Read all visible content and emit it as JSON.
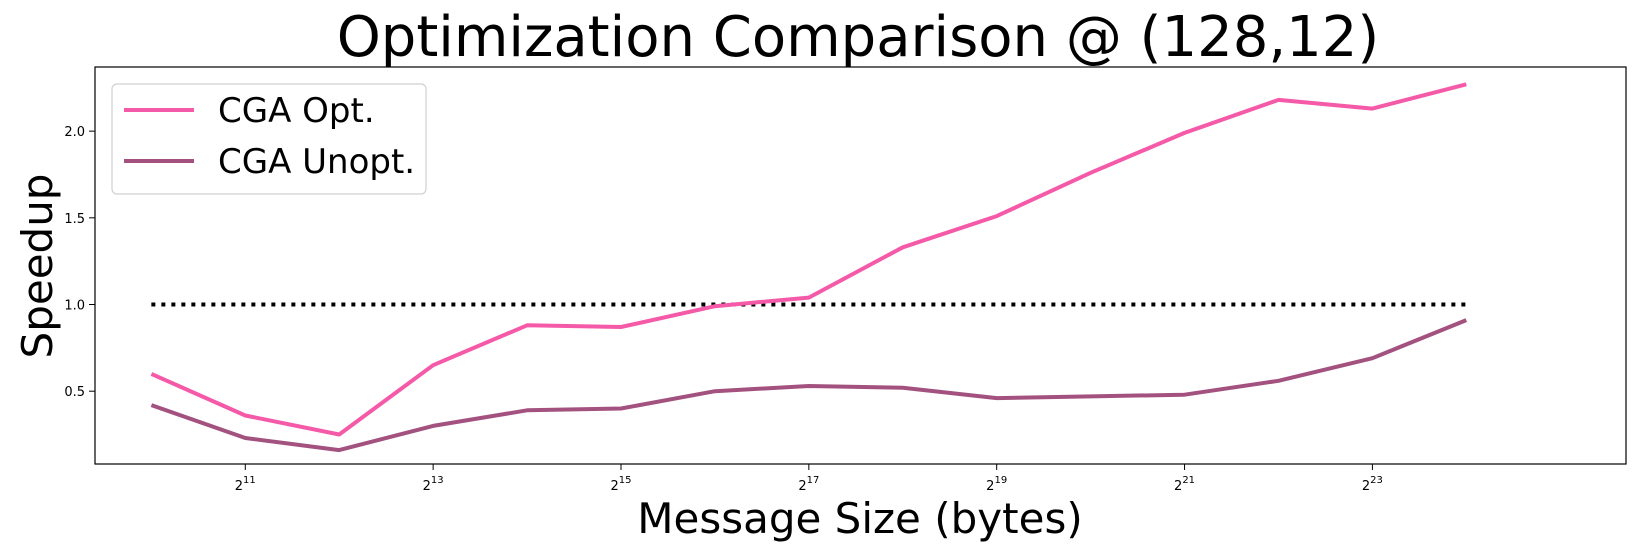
{
  "chart_data": {
    "type": "line",
    "title": "Optimization Comparison @ (128,12)",
    "xlabel": "Message Size (bytes)",
    "ylabel": "Speedup",
    "x_scale": "log2",
    "x_exponents": [
      10,
      11,
      12,
      13,
      14,
      15,
      16,
      17,
      18,
      19,
      20,
      21,
      22,
      23,
      24
    ],
    "x_tick_base": "2",
    "x_tick_exponents": [
      "11",
      "13",
      "15",
      "17",
      "19",
      "21",
      "23"
    ],
    "y_ticks": [
      "0.5",
      "1.0",
      "1.5",
      "2.0"
    ],
    "ylim": [
      0.08,
      2.37
    ],
    "xlim_exponents": [
      9.4,
      25.7
    ],
    "grid": false,
    "legend_position": "top-left",
    "series": [
      {
        "name": "CGA Opt.",
        "color": "#f55aa8",
        "values": [
          0.6,
          0.36,
          0.25,
          0.65,
          0.88,
          0.87,
          0.99,
          1.04,
          1.33,
          1.51,
          1.76,
          1.99,
          2.18,
          2.13,
          2.27
        ]
      },
      {
        "name": "CGA Unopt.",
        "color": "#a3527f",
        "values": [
          0.42,
          0.23,
          0.16,
          0.3,
          0.39,
          0.4,
          0.5,
          0.53,
          0.52,
          0.46,
          0.47,
          0.48,
          0.56,
          0.69,
          0.91
        ]
      }
    ],
    "reference_line": {
      "value": 1.0,
      "style": "dotted",
      "color": "#000000"
    }
  }
}
